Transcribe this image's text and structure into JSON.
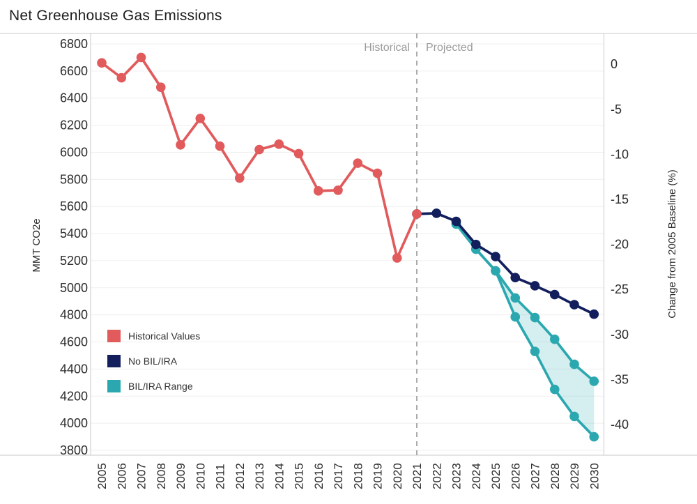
{
  "title": "Net Greenhouse Gas Emissions",
  "zones": {
    "historical": "Historical",
    "projected": "Projected"
  },
  "legend": [
    {
      "label": "Historical Values",
      "color": "#E15A5C"
    },
    {
      "label": "No BIL/IRA",
      "color": "#121F5C"
    },
    {
      "label": "BIL/IRA Range",
      "color": "#2BA8AF"
    }
  ],
  "colors": {
    "historical": "#E15A5C",
    "no_bil_ira": "#121F5C",
    "bil_ira": "#2BA8AF",
    "band_fill": "#2BA8AF",
    "gridline": "#efefef",
    "frame": "#c9c9c9",
    "divider": "#ababab",
    "tick_text": "#2b2b2b",
    "zone_text": "#9b9b9b"
  },
  "chart_data": {
    "type": "line",
    "title": "Net Greenhouse Gas Emissions",
    "x_axis": {
      "ticks": [
        2005,
        2006,
        2007,
        2008,
        2009,
        2010,
        2011,
        2012,
        2013,
        2014,
        2015,
        2016,
        2017,
        2018,
        2019,
        2020,
        2021,
        2022,
        2023,
        2024,
        2025,
        2026,
        2027,
        2028,
        2029,
        2030
      ]
    },
    "y_left": {
      "title": "MMT CO2e",
      "range": [
        3800,
        6800
      ],
      "ticks": [
        6800,
        6600,
        6400,
        6200,
        6000,
        5800,
        5600,
        5400,
        5200,
        5000,
        4800,
        4600,
        4400,
        4200,
        4000,
        3800
      ]
    },
    "y_right": {
      "title": "Change from 2005 Baseline (%)",
      "ticks": [
        0,
        -5,
        -10,
        -15,
        -20,
        -25,
        -30,
        -35,
        -40
      ],
      "baseline_mmt_2005": 6650
    },
    "divider": {
      "year": 2021,
      "left_label": "Historical",
      "right_label": "Projected"
    },
    "grid": true,
    "legend_position": "inside-bottom-left",
    "series": [
      {
        "name": "Historical Values",
        "key": "historical",
        "color": "#E15A5C",
        "x": [
          2005,
          2006,
          2007,
          2008,
          2009,
          2010,
          2011,
          2012,
          2013,
          2014,
          2015,
          2016,
          2017,
          2018,
          2019,
          2020,
          2021
        ],
        "values": [
          6660,
          6550,
          6700,
          6480,
          6055,
          6250,
          6045,
          5810,
          6020,
          6060,
          5990,
          5715,
          5720,
          5920,
          5845,
          5220,
          5545
        ]
      },
      {
        "name": "No BIL/IRA",
        "key": "no_bil_ira",
        "color": "#121F5C",
        "x": [
          2021,
          2022,
          2023,
          2024,
          2025,
          2026,
          2027,
          2028,
          2029,
          2030
        ],
        "values": [
          5545,
          5550,
          5490,
          5320,
          5230,
          5075,
          5015,
          4950,
          4875,
          4805
        ]
      },
      {
        "name": "BIL/IRA Range (upper bound)",
        "key": "bil_ira_upper",
        "color": "#2BA8AF",
        "x": [
          2023,
          2024,
          2025,
          2026,
          2027,
          2028,
          2029,
          2030
        ],
        "values": [
          5470,
          5285,
          5125,
          4925,
          4780,
          4620,
          4435,
          4310
        ]
      },
      {
        "name": "BIL/IRA Range (lower bound)",
        "key": "bil_ira_lower",
        "color": "#2BA8AF",
        "x": [
          2023,
          2024,
          2025,
          2026,
          2027,
          2028,
          2029,
          2030
        ],
        "values": [
          5470,
          5285,
          5125,
          4785,
          4530,
          4250,
          4050,
          3900
        ]
      }
    ],
    "band": {
      "color": "#2BA8AF",
      "opacity": 0.2,
      "x": [
        2023,
        2024,
        2025,
        2026,
        2027,
        2028,
        2029,
        2030
      ],
      "upper": [
        5470,
        5285,
        5125,
        4925,
        4780,
        4620,
        4435,
        4310
      ],
      "lower": [
        5470,
        5285,
        5125,
        4785,
        4530,
        4250,
        4050,
        3900
      ]
    }
  }
}
